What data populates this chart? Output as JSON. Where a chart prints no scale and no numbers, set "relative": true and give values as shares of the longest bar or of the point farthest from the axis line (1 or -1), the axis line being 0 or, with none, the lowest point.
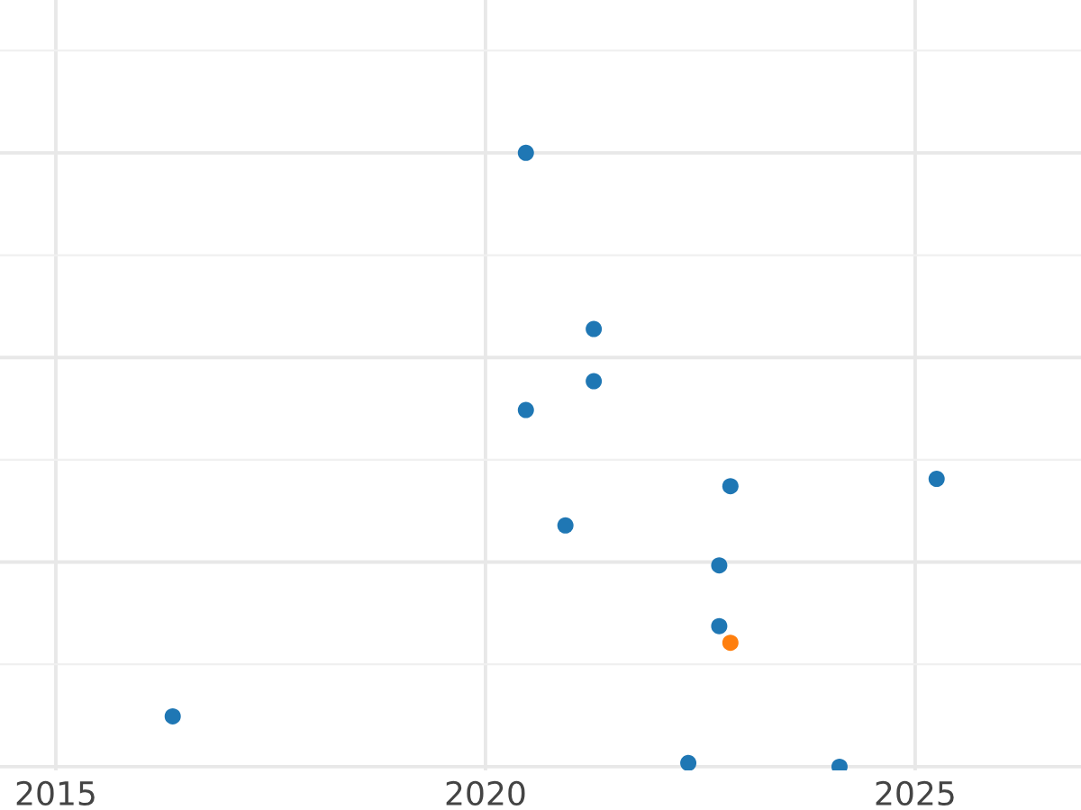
{
  "chart_data": {
    "type": "scatter",
    "relative": true,
    "x": [
      2020.47,
      2021.26,
      2021.26,
      2020.47,
      2022.85,
      2025.25,
      2020.93,
      2022.72,
      2022.72,
      2022.85,
      2016.36,
      2022.36,
      2024.12
    ],
    "values": [
      1.0,
      0.713,
      0.628,
      0.581,
      0.457,
      0.469,
      0.393,
      0.328,
      0.229,
      0.202,
      0.082,
      0.006,
      0
    ],
    "colors": [
      "#1f77b4",
      "#1f77b4",
      "#1f77b4",
      "#1f77b4",
      "#1f77b4",
      "#1f77b4",
      "#1f77b4",
      "#1f77b4",
      "#1f77b4",
      "#ff7f0e",
      "#1f77b4",
      "#1f77b4",
      "#1f77b4"
    ],
    "xlim": [
      2014.35,
      2026.93
    ],
    "xticks": [
      2015,
      2020,
      2025
    ],
    "marker": "circle",
    "grid": true,
    "tick_labels": "x"
  }
}
